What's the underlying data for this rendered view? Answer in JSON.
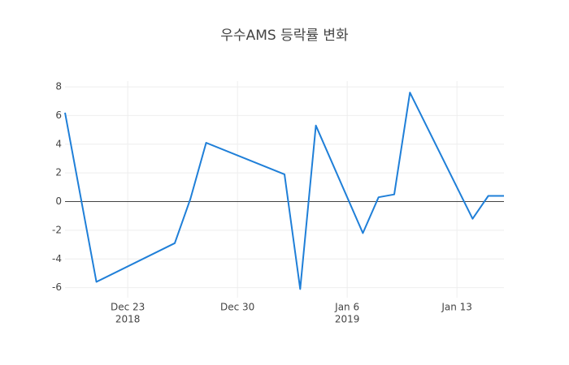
{
  "chart_data": {
    "type": "line",
    "title": "우수AMS 등락률 변화",
    "x": [
      "2018-12-19",
      "2018-12-21",
      "2018-12-26",
      "2018-12-27",
      "2018-12-28",
      "2019-01-02",
      "2019-01-03",
      "2019-01-04",
      "2019-01-07",
      "2019-01-08",
      "2019-01-09",
      "2019-01-10",
      "2019-01-14",
      "2019-01-15",
      "2019-01-16"
    ],
    "series": [
      {
        "color": "#1f7fd8",
        "values": [
          6.2,
          -5.6,
          -2.9,
          0.2,
          4.1,
          1.9,
          -6.1,
          5.3,
          -2.2,
          0.3,
          0.5,
          7.6,
          -1.2,
          0.4,
          0.4
        ]
      }
    ],
    "xlim": [
      "2018-12-19",
      "2019-01-16"
    ],
    "xticks": [
      {
        "value": "2018-12-23",
        "label": [
          "Dec 23",
          "2018"
        ]
      },
      {
        "value": "2018-12-30",
        "label": [
          "Dec 30"
        ]
      },
      {
        "value": "2019-01-06",
        "label": [
          "Jan 6",
          "2019"
        ]
      },
      {
        "value": "2019-01-13",
        "label": [
          "Jan 13"
        ]
      }
    ],
    "ylim": [
      -6.7,
      8.4
    ],
    "yticks": [
      -6,
      -4,
      -2,
      0,
      2,
      4,
      6,
      8
    ],
    "grid": true
  }
}
